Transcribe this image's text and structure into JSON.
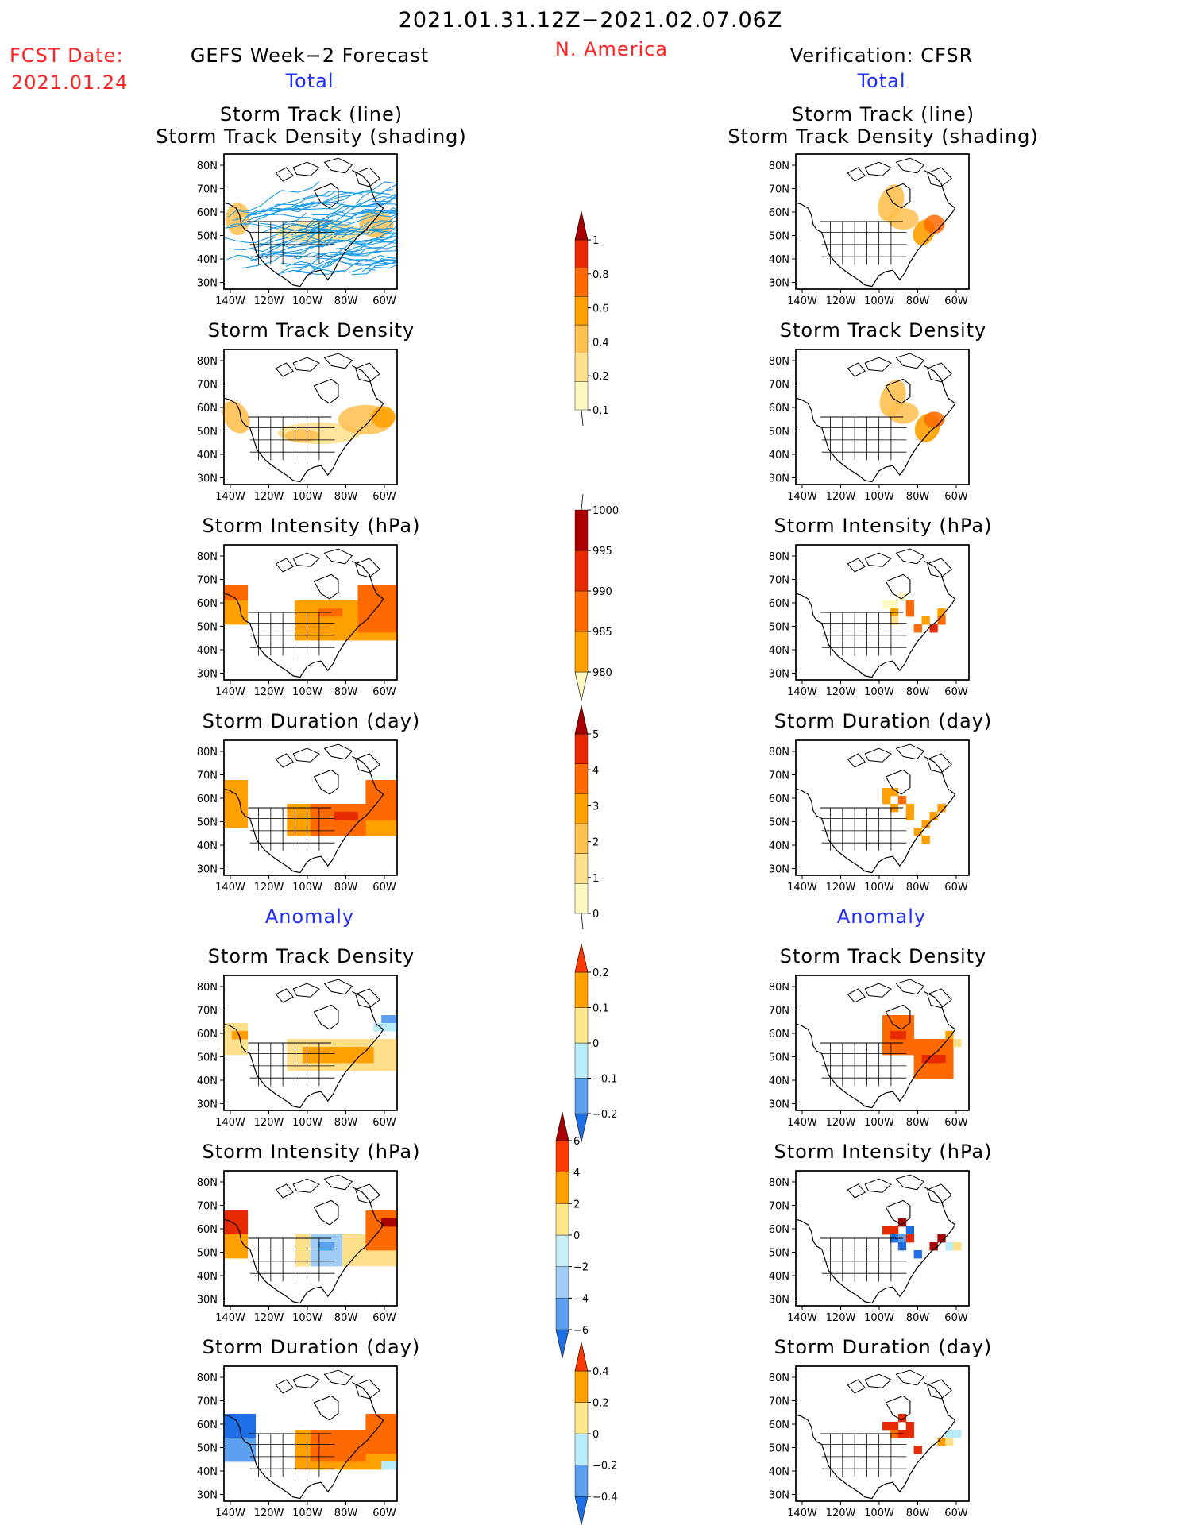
{
  "header": {
    "period": "2021.01.31.12Z−2021.02.07.06Z",
    "fcst_label": "FCST Date:",
    "fcst_date": "2021.01.24",
    "left_title": "GEFS Week−2 Forecast",
    "region": "N. America",
    "right_title": "Verification: CFSR",
    "total_label": "Total",
    "anomaly_label": "Anomaly"
  },
  "panel_titles": {
    "track_line": "Storm Track (line)",
    "track_density_shading": "Storm Track Density (shading)",
    "track_density": "Storm Track Density",
    "intensity": "Storm Intensity (hPa)",
    "duration": "Storm Duration (day)"
  },
  "axes": {
    "lat_ticks": [
      "80N",
      "70N",
      "60N",
      "50N",
      "40N",
      "30N"
    ],
    "lon_ticks": [
      "140W",
      "120W",
      "100W",
      "80W",
      "60W"
    ]
  },
  "colorbars": [
    {
      "id": "density_total",
      "ticks": [
        "1",
        "0.8",
        "0.6",
        "0.4",
        "0.2",
        "0.1"
      ],
      "colors": [
        "#fff8c0",
        "#ffe08a",
        "#ffc050",
        "#ffa000",
        "#ff6a00",
        "#e82a00",
        "#a80000"
      ],
      "arrow": "top"
    },
    {
      "id": "intensity_total",
      "ticks": [
        "1000",
        "995",
        "990",
        "985",
        "980"
      ],
      "colors": [
        "#fff8c0",
        "#ffa000",
        "#ff6a00",
        "#e82a00",
        "#a80000"
      ],
      "arrow": "bottom"
    },
    {
      "id": "duration_total",
      "ticks": [
        "5",
        "4",
        "3",
        "2",
        "1",
        "0"
      ],
      "colors": [
        "#fff8c0",
        "#ffe08a",
        "#ffc050",
        "#ffa000",
        "#ff6a00",
        "#e82a00",
        "#a80000"
      ],
      "arrow": "top"
    },
    {
      "id": "density_anom",
      "ticks": [
        "0.2",
        "0.1",
        "0",
        "−0.1",
        "−0.2"
      ],
      "colors": [
        "#1e6fe6",
        "#5ea0f0",
        "#b8ecf8",
        "#ffe88a",
        "#ffa000",
        "#ff3a00"
      ],
      "arrow": "both"
    },
    {
      "id": "intensity_anom",
      "ticks": [
        "6",
        "4",
        "2",
        "0",
        "−2",
        "−4",
        "−6"
      ],
      "colors": [
        "#1e6fe6",
        "#5ea0f0",
        "#a0cdf5",
        "#c8eef8",
        "#ffe88a",
        "#ffa000",
        "#ff3a00",
        "#a80000"
      ],
      "arrow": "both"
    },
    {
      "id": "duration_anom",
      "ticks": [
        "0.4",
        "0.2",
        "0",
        "−0.2",
        "−0.4"
      ],
      "colors": [
        "#1e6fe6",
        "#5ea0f0",
        "#b8ecf8",
        "#ffe88a",
        "#ffa000",
        "#ff3a00"
      ],
      "arrow": "both"
    }
  ],
  "chart_data": {
    "type": "heatmap",
    "title": "2021.01.31.12Z−2021.02.07.06Z",
    "region": "N. America",
    "lat_range": [
      25,
      85
    ],
    "lon_range": [
      -140,
      -55
    ],
    "panels": [
      {
        "col": "forecast",
        "row": 0,
        "name": "Storm Track (line) / Storm Track Density (shading)",
        "tracks": true
      },
      {
        "col": "forecast",
        "row": 1,
        "name": "Storm Track Density"
      },
      {
        "col": "forecast",
        "row": 2,
        "name": "Storm Intensity (hPa)"
      },
      {
        "col": "forecast",
        "row": 3,
        "name": "Storm Duration (day)"
      },
      {
        "col": "forecast",
        "row": 4,
        "name": "Storm Track Density Anomaly"
      },
      {
        "col": "forecast",
        "row": 5,
        "name": "Storm Intensity Anomaly (hPa)"
      },
      {
        "col": "forecast",
        "row": 6,
        "name": "Storm Duration Anomaly (day)"
      },
      {
        "col": "verification",
        "row": 0,
        "name": "Storm Track (line) / Storm Track Density (shading)"
      },
      {
        "col": "verification",
        "row": 1,
        "name": "Storm Track Density"
      },
      {
        "col": "verification",
        "row": 2,
        "name": "Storm Intensity (hPa)"
      },
      {
        "col": "verification",
        "row": 3,
        "name": "Storm Duration (day)"
      },
      {
        "col": "verification",
        "row": 4,
        "name": "Storm Track Density Anomaly"
      },
      {
        "col": "verification",
        "row": 5,
        "name": "Storm Intensity Anomaly (hPa)"
      },
      {
        "col": "verification",
        "row": 6,
        "name": "Storm Duration Anomaly (day)"
      }
    ]
  }
}
